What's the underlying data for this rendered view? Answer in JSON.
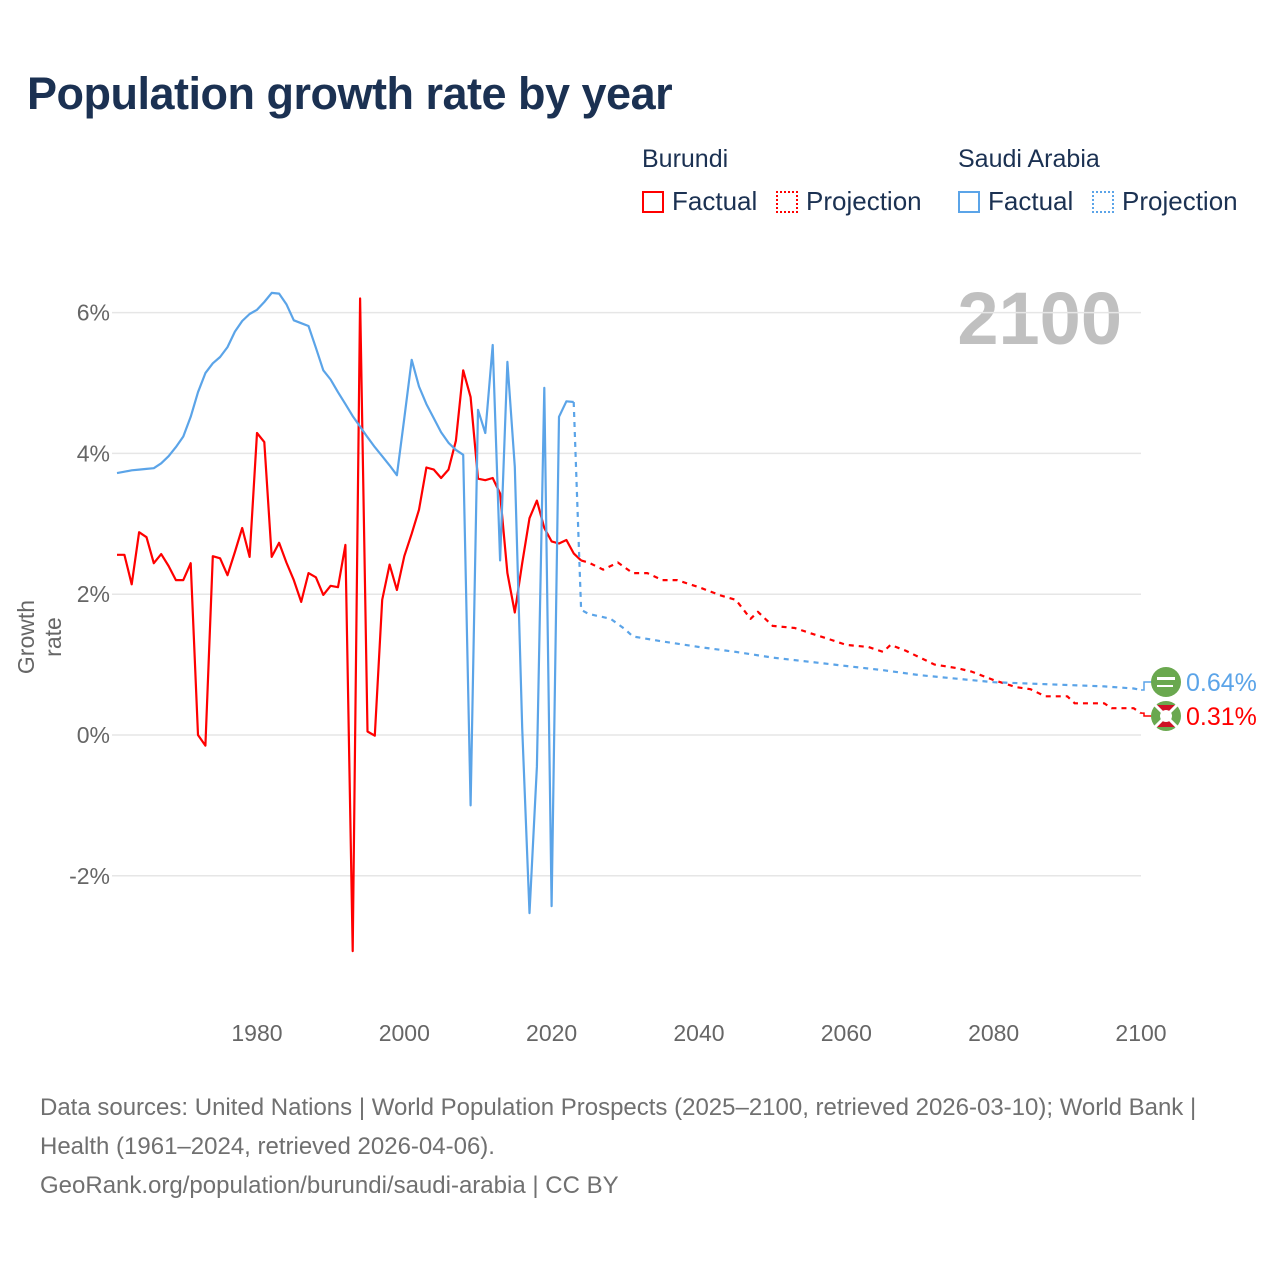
{
  "title": "Population growth rate by year",
  "legend": {
    "groups": [
      {
        "country": "Burundi",
        "factual": "Factual",
        "projection": "Projection",
        "color": "#ff0000"
      },
      {
        "country": "Saudi Arabia",
        "factual": "Factual",
        "projection": "Projection",
        "color": "#5ba4e8"
      }
    ]
  },
  "current_year": "2100",
  "footer": {
    "sources": "Data sources: United Nations | World Population Prospects (2025–2100, retrieved 2026-03-10); World Bank | Health (1961–2024, retrieved 2026-04-06).",
    "credit": "GeoRank.org/population/burundi/saudi-arabia | CC BY"
  },
  "chart_data": {
    "type": "line",
    "title": "Population growth rate by year",
    "xlabel": "",
    "ylabel": "Growth rate",
    "xlim": [
      1961,
      2100
    ],
    "ylim": [
      -3.5,
      7
    ],
    "grid": true,
    "x_ticks": [
      {
        "v": 1980,
        "label": "1980"
      },
      {
        "v": 2000,
        "label": "2000"
      },
      {
        "v": 2020,
        "label": "2020"
      },
      {
        "v": 2040,
        "label": "2040"
      },
      {
        "v": 2060,
        "label": "2060"
      },
      {
        "v": 2080,
        "label": "2080"
      },
      {
        "v": 2100,
        "label": "2100"
      }
    ],
    "y_ticks": [
      {
        "v": 6,
        "label": "6%"
      },
      {
        "v": 4,
        "label": "4%"
      },
      {
        "v": 2,
        "label": "2%"
      },
      {
        "v": 0,
        "label": "0%"
      },
      {
        "v": -2,
        "label": "-2%"
      }
    ],
    "series": [
      {
        "name": "Burundi Factual",
        "color": "#ff0000",
        "dashed": false,
        "x": [
          1961,
          1962,
          1963,
          1964,
          1965,
          1966,
          1967,
          1968,
          1969,
          1970,
          1971,
          1972,
          1973,
          1974,
          1975,
          1976,
          1977,
          1978,
          1979,
          1980,
          1981,
          1982,
          1983,
          1984,
          1985,
          1986,
          1987,
          1988,
          1989,
          1990,
          1991,
          1992,
          1993,
          1994,
          1995,
          1996,
          1997,
          1998,
          1999,
          2000,
          2001,
          2002,
          2003,
          2004,
          2005,
          2006,
          2007,
          2008,
          2009,
          2010,
          2011,
          2012,
          2013,
          2014,
          2015,
          2016,
          2017,
          2018,
          2019,
          2020,
          2021,
          2022,
          2023,
          2024
        ],
        "y": [
          2.56,
          2.56,
          2.14,
          2.88,
          2.81,
          2.44,
          2.57,
          2.4,
          2.2,
          2.2,
          2.44,
          0.0,
          -0.15,
          2.54,
          2.51,
          2.27,
          2.6,
          2.94,
          2.53,
          4.29,
          4.16,
          2.53,
          2.73,
          2.45,
          2.2,
          1.89,
          2.3,
          2.24,
          1.99,
          2.12,
          2.1,
          2.7,
          -3.07,
          6.2,
          0.05,
          -0.01,
          1.92,
          2.42,
          2.06,
          2.54,
          2.86,
          3.2,
          3.8,
          3.77,
          3.65,
          3.77,
          4.18,
          5.18,
          4.8,
          3.64,
          3.62,
          3.65,
          3.43,
          2.3,
          1.74,
          2.44,
          3.08,
          3.33,
          2.94,
          2.75,
          2.72,
          2.77,
          2.58,
          2.48
        ]
      },
      {
        "name": "Burundi Projection",
        "color": "#ff0000",
        "dashed": true,
        "x": [
          2024,
          2025,
          2027,
          2029,
          2031,
          2033,
          2035,
          2037,
          2040,
          2043,
          2045,
          2047,
          2048,
          2050,
          2053,
          2055,
          2058,
          2060,
          2063,
          2065,
          2066,
          2068,
          2070,
          2072,
          2075,
          2077,
          2080,
          2083,
          2085,
          2087,
          2090,
          2091,
          2095,
          2096,
          2099,
          2100
        ],
        "y": [
          2.48,
          2.45,
          2.35,
          2.45,
          2.3,
          2.3,
          2.2,
          2.2,
          2.1,
          1.98,
          1.92,
          1.65,
          1.75,
          1.55,
          1.52,
          1.45,
          1.35,
          1.28,
          1.25,
          1.18,
          1.28,
          1.2,
          1.1,
          1.0,
          0.95,
          0.9,
          0.78,
          0.68,
          0.65,
          0.55,
          0.55,
          0.45,
          0.45,
          0.38,
          0.38,
          0.31
        ]
      },
      {
        "name": "Saudi Arabia Factual",
        "color": "#5ba4e8",
        "dashed": false,
        "x": [
          1961,
          1962,
          1963,
          1964,
          1965,
          1966,
          1967,
          1968,
          1969,
          1970,
          1971,
          1972,
          1973,
          1974,
          1975,
          1976,
          1977,
          1978,
          1979,
          1980,
          1981,
          1982,
          1983,
          1984,
          1985,
          1986,
          1987,
          1988,
          1989,
          1990,
          1991,
          1992,
          1993,
          1994,
          1995,
          1996,
          1997,
          1998,
          1999,
          2000,
          2001,
          2002,
          2003,
          2004,
          2005,
          2006,
          2007,
          2008,
          2009,
          2010,
          2011,
          2012,
          2013,
          2014,
          2015,
          2016,
          2017,
          2018,
          2019,
          2020,
          2021,
          2022,
          2023
        ],
        "y": [
          3.72,
          3.74,
          3.76,
          3.77,
          3.78,
          3.79,
          3.86,
          3.96,
          4.09,
          4.24,
          4.52,
          4.87,
          5.14,
          5.28,
          5.37,
          5.51,
          5.73,
          5.88,
          5.98,
          6.04,
          6.15,
          6.28,
          6.27,
          6.12,
          5.89,
          5.85,
          5.81,
          5.5,
          5.18,
          5.05,
          4.87,
          4.7,
          4.53,
          4.38,
          4.23,
          4.09,
          3.96,
          3.83,
          3.69,
          4.5,
          5.33,
          4.95,
          4.7,
          4.5,
          4.3,
          4.15,
          4.05,
          3.98,
          -1.0,
          4.62,
          4.29,
          5.54,
          2.48,
          5.3,
          3.81,
          0.1,
          -2.53,
          -0.45,
          4.93,
          -2.43,
          4.52,
          4.74,
          4.73
        ]
      },
      {
        "name": "Saudi Arabia Projection",
        "color": "#5ba4e8",
        "dashed": true,
        "x": [
          2023,
          2024,
          2025,
          2028,
          2030,
          2031,
          2035,
          2040,
          2045,
          2050,
          2055,
          2060,
          2065,
          2070,
          2075,
          2080,
          2085,
          2090,
          2095,
          2099,
          2100
        ],
        "y": [
          4.73,
          1.78,
          1.72,
          1.65,
          1.5,
          1.4,
          1.33,
          1.25,
          1.18,
          1.1,
          1.04,
          0.98,
          0.92,
          0.85,
          0.8,
          0.75,
          0.73,
          0.71,
          0.69,
          0.66,
          0.64
        ]
      }
    ],
    "end_labels": [
      {
        "series": "Saudi Arabia",
        "label": "0.64%",
        "value": 0.64,
        "color": "#5ba4e8",
        "flag": "saudi-flag"
      },
      {
        "series": "Burundi",
        "label": "0.31%",
        "value": 0.31,
        "color": "#ff0000",
        "flag": "burundi-flag"
      }
    ]
  }
}
